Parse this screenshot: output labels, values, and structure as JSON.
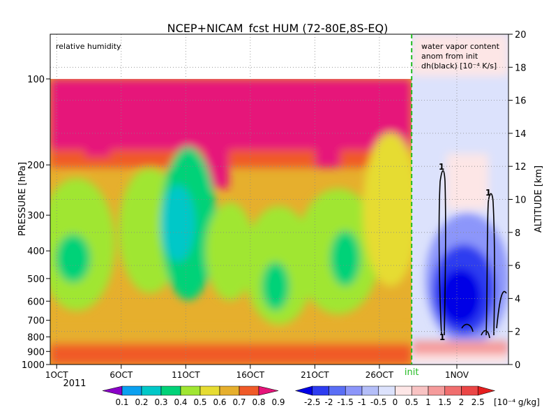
{
  "chart_data": {
    "type": "heatmap",
    "title": "NCEP+NICAM_fcst HUM (72-80E,8S-EQ)",
    "left_panel_label": "relative humidity",
    "right_panel_label": [
      "water vapor content",
      "anom from init",
      "dh(black) [10⁻⁴ K/s]"
    ],
    "ylabel_left": "PRESSURE [hPa]",
    "ylabel_right": "ALTITUDE [km]",
    "pressure_ticks": [
      "100",
      "200",
      "300",
      "400",
      "500",
      "600",
      "700",
      "800",
      "900",
      "1000"
    ],
    "pressure_values": [
      100,
      200,
      300,
      400,
      500,
      600,
      700,
      800,
      900,
      1000
    ],
    "yscale": "log",
    "altitude_ticks": [
      "0",
      "2",
      "4",
      "6",
      "8",
      "10",
      "12",
      "14",
      "16",
      "18",
      "20"
    ],
    "altitude_range": [
      0,
      20
    ],
    "x_ticks": [
      "1OCT",
      "6OCT",
      "11OCT",
      "16OCT",
      "21OCT",
      "26OCT",
      "1NOV"
    ],
    "x_tick_days": [
      1,
      6,
      11,
      16,
      21,
      26,
      32
    ],
    "x_year": "2011",
    "init_label": "init",
    "init_day": 28.5,
    "contour_label": "1",
    "relative_humidity_colorbar": {
      "labels": [
        "0.1",
        "0.2",
        "0.3",
        "0.4",
        "0.5",
        "0.6",
        "0.7",
        "0.8",
        "0.9"
      ],
      "colors": [
        "#8a00c8",
        "#0aa0f0",
        "#00c8c8",
        "#00d278",
        "#a0e632",
        "#e6dc32",
        "#e6af2d",
        "#f05a28",
        "#e6147a"
      ]
    },
    "anomaly_colorbar": {
      "labels": [
        "-2.5",
        "-2",
        "-1.5",
        "-1",
        "-0.5",
        "0",
        "0.5",
        "1",
        "1.5",
        "2",
        "2.5"
      ],
      "unit": "[10⁻⁴ g/kg]",
      "colors": [
        "#0000e6",
        "#2d3cf0",
        "#5a6ef5",
        "#8c96fa",
        "#b4bef8",
        "#dce2fc",
        "#fde6e6",
        "#f8c3c3",
        "#f59b9b",
        "#f06e6e",
        "#eb4646",
        "#e61e1e"
      ]
    }
  }
}
